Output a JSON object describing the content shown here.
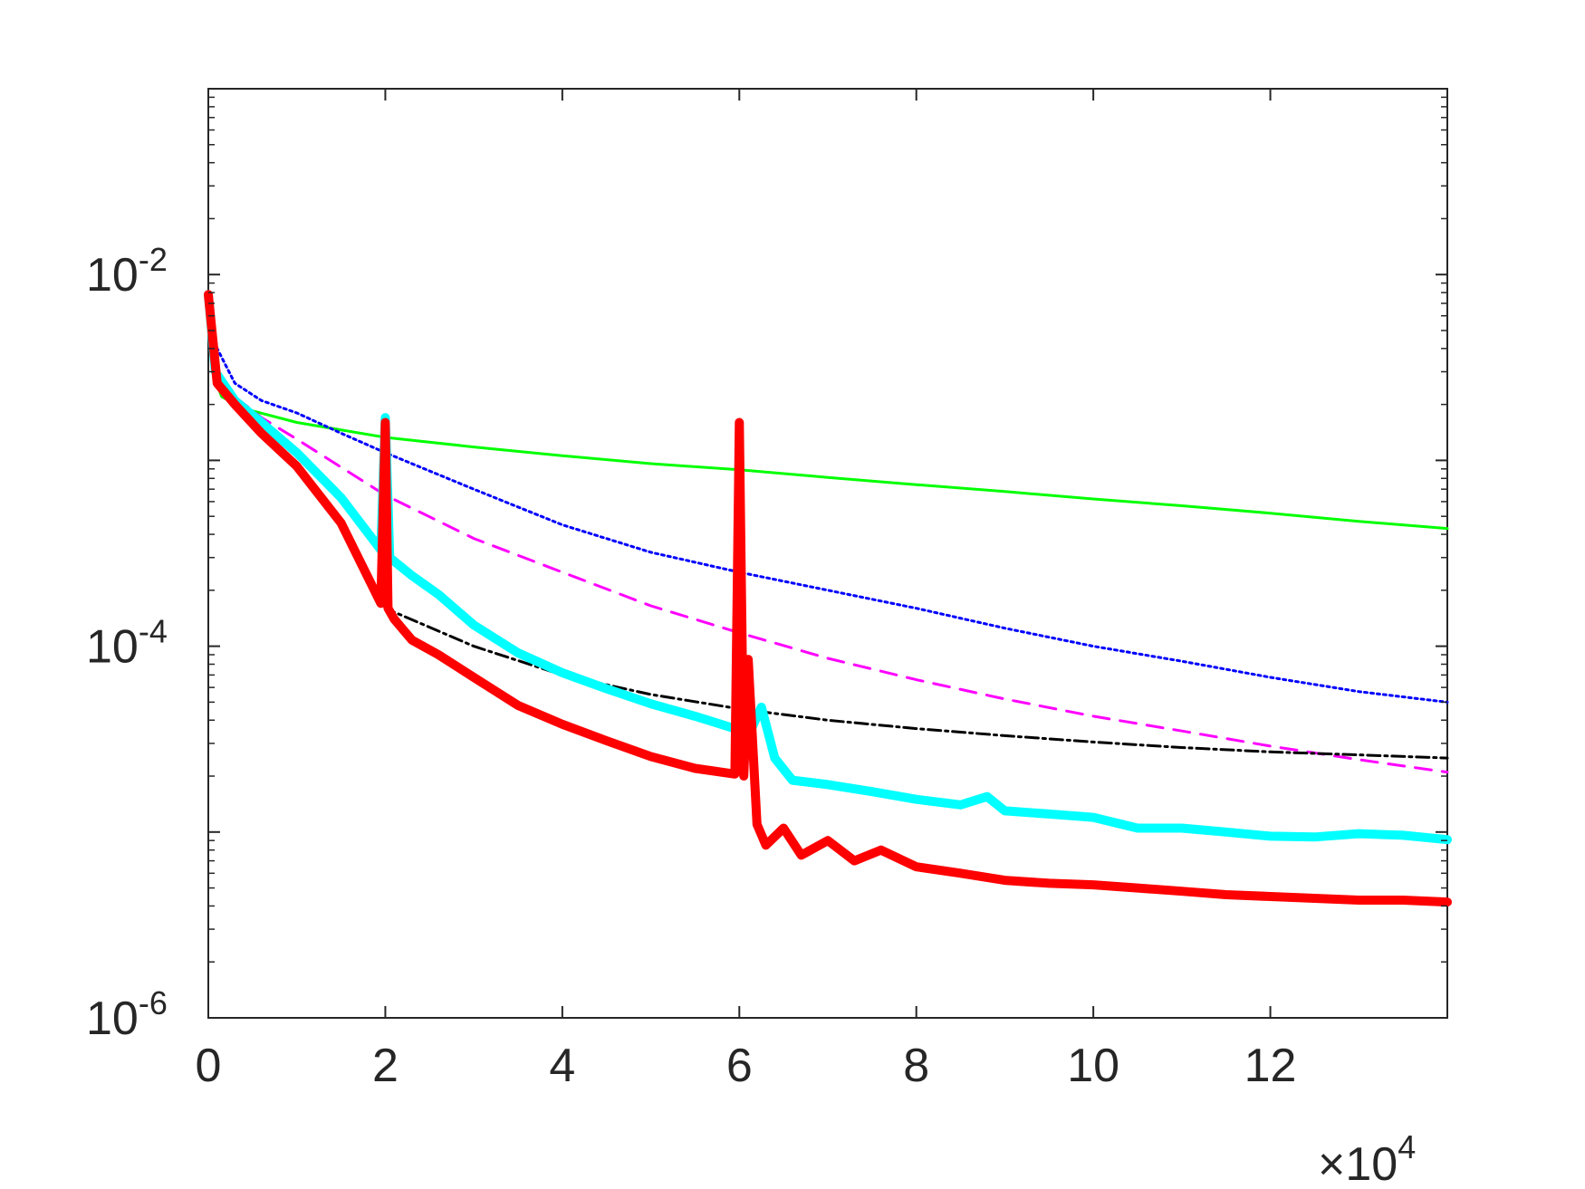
{
  "chart_data": {
    "type": "line",
    "title": "",
    "xlabel": "",
    "ylabel": "",
    "x_multiplier": {
      "base": "10",
      "exponent": "4",
      "times": "×"
    },
    "xlim": [
      0,
      14
    ],
    "ylim": [
      1e-06,
      0.1
    ],
    "yscale": "log",
    "x_ticks": [
      0,
      2,
      4,
      6,
      8,
      10,
      12
    ],
    "x_tick_labels": [
      "0",
      "2",
      "4",
      "6",
      "8",
      "10",
      "12"
    ],
    "y_ticks": [
      {
        "value": 1e-06,
        "base": "10",
        "exponent": "-6"
      },
      {
        "value": 0.0001,
        "base": "10",
        "exponent": "-4"
      },
      {
        "value": 0.01,
        "base": "10",
        "exponent": "-2"
      }
    ],
    "grid": false,
    "legend": "none",
    "series": [
      {
        "color": "#00ff00",
        "style": "solid",
        "width": 3,
        "points": [
          [
            0,
            0.0078
          ],
          [
            0.05,
            0.003
          ],
          [
            0.15,
            0.0022
          ],
          [
            0.4,
            0.0019
          ],
          [
            1,
            0.0016
          ],
          [
            2,
            0.00133
          ],
          [
            3,
            0.00118
          ],
          [
            4,
            0.00106
          ],
          [
            5,
            0.00096
          ],
          [
            6,
            0.00089
          ],
          [
            7,
            0.00081
          ],
          [
            8,
            0.00074
          ],
          [
            9,
            0.00068
          ],
          [
            10,
            0.00062
          ],
          [
            11,
            0.00057
          ],
          [
            12,
            0.00052
          ],
          [
            13,
            0.00047
          ],
          [
            14,
            0.00043
          ]
        ]
      },
      {
        "color": "#0000ff",
        "style": "dotted",
        "width": 3,
        "points": [
          [
            0,
            0.0075
          ],
          [
            0.1,
            0.004
          ],
          [
            0.3,
            0.0026
          ],
          [
            0.6,
            0.0021
          ],
          [
            1,
            0.0018
          ],
          [
            1.5,
            0.0014
          ],
          [
            2,
            0.0011
          ],
          [
            3,
            0.0007
          ],
          [
            4,
            0.00045
          ],
          [
            5,
            0.00032
          ],
          [
            6,
            0.00025
          ],
          [
            7,
            0.0002
          ],
          [
            8,
            0.00016
          ],
          [
            9,
            0.000125
          ],
          [
            10,
            0.0001
          ],
          [
            11,
            8.3e-05
          ],
          [
            12,
            6.8e-05
          ],
          [
            13,
            5.7e-05
          ],
          [
            14,
            5e-05
          ]
        ]
      },
      {
        "color": "#ff00ff",
        "style": "dashed",
        "width": 3,
        "points": [
          [
            0,
            0.0078
          ],
          [
            0.1,
            0.003
          ],
          [
            0.3,
            0.0022
          ],
          [
            0.6,
            0.0017
          ],
          [
            1,
            0.0013
          ],
          [
            2,
            0.00065
          ],
          [
            3,
            0.00038
          ],
          [
            4,
            0.00025
          ],
          [
            5,
            0.000165
          ],
          [
            6,
            0.000118
          ],
          [
            7,
            8.6e-05
          ],
          [
            8,
            6.6e-05
          ],
          [
            9,
            5.2e-05
          ],
          [
            10,
            4.2e-05
          ],
          [
            11,
            3.5e-05
          ],
          [
            12,
            2.9e-05
          ],
          [
            13,
            2.45e-05
          ],
          [
            14,
            2.1e-05
          ]
        ]
      },
      {
        "color": "#000000",
        "style": "dashdot",
        "width": 3,
        "points": [
          [
            0,
            0.0078
          ],
          [
            0.1,
            0.003
          ],
          [
            0.3,
            0.0021
          ],
          [
            0.6,
            0.0014
          ],
          [
            1,
            0.0009
          ],
          [
            1.5,
            0.00045
          ],
          [
            2,
            0.00016
          ],
          [
            3,
            0.0001
          ],
          [
            4,
            7e-05
          ],
          [
            5,
            5.5e-05
          ],
          [
            6,
            4.6e-05
          ],
          [
            7,
            4e-05
          ],
          [
            8,
            3.6e-05
          ],
          [
            9,
            3.3e-05
          ],
          [
            10,
            3.05e-05
          ],
          [
            11,
            2.85e-05
          ],
          [
            12,
            2.7e-05
          ],
          [
            13,
            2.6e-05
          ],
          [
            14,
            2.5e-05
          ]
        ]
      },
      {
        "color": "#00ffff",
        "style": "solid",
        "width": 10,
        "points": [
          [
            0,
            0.0078
          ],
          [
            0.08,
            0.003
          ],
          [
            0.3,
            0.0021
          ],
          [
            0.6,
            0.0016
          ],
          [
            1,
            0.0011
          ],
          [
            1.5,
            0.00063
          ],
          [
            1.95,
            0.00033
          ],
          [
            2,
            0.0017
          ],
          [
            2.05,
            0.0003
          ],
          [
            2.3,
            0.00024
          ],
          [
            2.6,
            0.00019
          ],
          [
            3,
            0.00013
          ],
          [
            3.5,
            9.2e-05
          ],
          [
            4,
            7.2e-05
          ],
          [
            4.5,
            5.9e-05
          ],
          [
            5,
            4.9e-05
          ],
          [
            5.5,
            4.2e-05
          ],
          [
            5.95,
            3.6e-05
          ],
          [
            6,
            4.6e-05
          ],
          [
            6.1,
            3.3e-05
          ],
          [
            6.25,
            4.7e-05
          ],
          [
            6.4,
            2.5e-05
          ],
          [
            6.6,
            1.9e-05
          ],
          [
            7,
            1.8e-05
          ],
          [
            7.5,
            1.65e-05
          ],
          [
            8,
            1.5e-05
          ],
          [
            8.5,
            1.4e-05
          ],
          [
            8.8,
            1.55e-05
          ],
          [
            9,
            1.3e-05
          ],
          [
            9.5,
            1.25e-05
          ],
          [
            10,
            1.2e-05
          ],
          [
            10.5,
            1.05e-05
          ],
          [
            11,
            1.05e-05
          ],
          [
            11.5,
            1e-05
          ],
          [
            12,
            9.5e-06
          ],
          [
            12.5,
            9.4e-06
          ],
          [
            13,
            9.8e-06
          ],
          [
            13.5,
            9.6e-06
          ],
          [
            14,
            9.1e-06
          ]
        ]
      },
      {
        "color": "#ff0000",
        "style": "solid",
        "width": 10,
        "points": [
          [
            0,
            0.0078
          ],
          [
            0.1,
            0.0026
          ],
          [
            0.3,
            0.002
          ],
          [
            0.6,
            0.0014
          ],
          [
            1,
            0.00093
          ],
          [
            1.5,
            0.00046
          ],
          [
            1.95,
            0.00017
          ],
          [
            2,
            0.0016
          ],
          [
            2.03,
            0.00016
          ],
          [
            2.1,
            0.00014
          ],
          [
            2.3,
            0.000108
          ],
          [
            2.6,
            9e-05
          ],
          [
            3,
            6.8e-05
          ],
          [
            3.5,
            4.8e-05
          ],
          [
            4,
            3.8e-05
          ],
          [
            4.5,
            3.1e-05
          ],
          [
            5,
            2.55e-05
          ],
          [
            5.5,
            2.2e-05
          ],
          [
            5.95,
            2.05e-05
          ],
          [
            6,
            0.0016
          ],
          [
            6.05,
            2e-05
          ],
          [
            6.1,
            8.5e-05
          ],
          [
            6.2,
            1.1e-05
          ],
          [
            6.3,
            8.5e-06
          ],
          [
            6.5,
            1.05e-05
          ],
          [
            6.7,
            7.5e-06
          ],
          [
            7,
            9e-06
          ],
          [
            7.3,
            7e-06
          ],
          [
            7.6,
            8e-06
          ],
          [
            8,
            6.5e-06
          ],
          [
            8.5,
            6e-06
          ],
          [
            9,
            5.5e-06
          ],
          [
            9.5,
            5.3e-06
          ],
          [
            10,
            5.2e-06
          ],
          [
            10.5,
            5e-06
          ],
          [
            11,
            4.8e-06
          ],
          [
            11.5,
            4.6e-06
          ],
          [
            12,
            4.5e-06
          ],
          [
            12.5,
            4.4e-06
          ],
          [
            13,
            4.3e-06
          ],
          [
            13.5,
            4.3e-06
          ],
          [
            14,
            4.2e-06
          ]
        ]
      }
    ]
  }
}
